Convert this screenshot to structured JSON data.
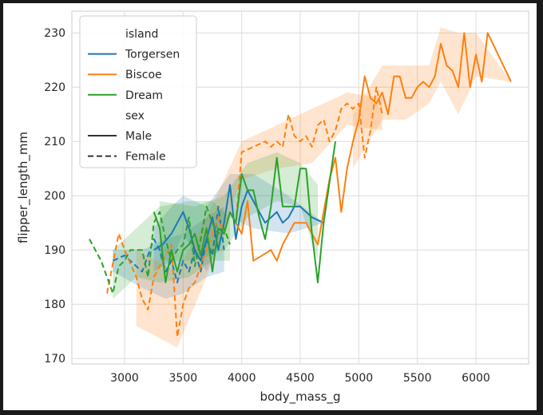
{
  "chart_data": {
    "type": "line",
    "title": "",
    "xlabel": "body_mass_g",
    "ylabel": "flipper_length_mm",
    "xlim": [
      2550,
      6450
    ],
    "ylim": [
      169,
      234
    ],
    "xticks": [
      3000,
      3500,
      4000,
      4500,
      5000,
      5500,
      6000
    ],
    "yticks": [
      170,
      180,
      190,
      200,
      210,
      220,
      230
    ],
    "grid": true,
    "legend_placement": "top-left",
    "legend": {
      "hue_title": "island",
      "style_title": "sex",
      "entries": [
        {
          "label": "Torgersen",
          "kind": "color",
          "color": "#1f77b4"
        },
        {
          "label": "Biscoe",
          "kind": "color",
          "color": "#ff7f0e"
        },
        {
          "label": "Dream",
          "kind": "color",
          "color": "#2ca02c"
        },
        {
          "label": "Male",
          "kind": "style",
          "dash": "solid"
        },
        {
          "label": "Female",
          "kind": "style",
          "dash": "dashed"
        }
      ]
    },
    "series": [
      {
        "island": "Torgersen",
        "sex": "Male",
        "color": "#1f77b4",
        "dash": "solid",
        "points": [
          [
            3250,
            190
          ],
          [
            3325,
            191
          ],
          [
            3400,
            193
          ],
          [
            3450,
            195
          ],
          [
            3500,
            197
          ],
          [
            3550,
            194
          ],
          [
            3600,
            190
          ],
          [
            3650,
            188
          ],
          [
            3700,
            192
          ],
          [
            3750,
            196
          ],
          [
            3800,
            190
          ],
          [
            3850,
            195
          ],
          [
            3900,
            202
          ],
          [
            3950,
            192
          ],
          [
            4000,
            198
          ],
          [
            4050,
            201
          ],
          [
            4100,
            199
          ],
          [
            4200,
            195
          ],
          [
            4300,
            197
          ],
          [
            4350,
            195
          ],
          [
            4400,
            196
          ],
          [
            4450,
            198
          ],
          [
            4500,
            198
          ],
          [
            4600,
            196
          ],
          [
            4700,
            195
          ]
        ],
        "band": [
          [
            3250,
            186,
            194
          ],
          [
            3400,
            188,
            198
          ],
          [
            3500,
            193,
            200
          ],
          [
            3700,
            186,
            198
          ],
          [
            3900,
            196,
            204
          ],
          [
            4100,
            194,
            204
          ],
          [
            4400,
            193,
            200
          ],
          [
            4700,
            195,
            195
          ]
        ]
      },
      {
        "island": "Torgersen",
        "sex": "Female",
        "color": "#1f77b4",
        "dash": "dashed",
        "points": [
          [
            2900,
            188
          ],
          [
            3000,
            189
          ],
          [
            3050,
            188
          ],
          [
            3100,
            187
          ],
          [
            3150,
            186
          ],
          [
            3200,
            189
          ],
          [
            3250,
            192
          ],
          [
            3300,
            190
          ],
          [
            3350,
            186
          ],
          [
            3400,
            188
          ],
          [
            3450,
            184
          ],
          [
            3500,
            188
          ],
          [
            3550,
            186
          ],
          [
            3600,
            190
          ],
          [
            3650,
            186
          ],
          [
            3700,
            192
          ],
          [
            3750,
            189
          ],
          [
            3800,
            198
          ],
          [
            3850,
            190
          ]
        ],
        "band": [
          [
            2900,
            186,
            190
          ],
          [
            3150,
            183,
            190
          ],
          [
            3350,
            181,
            192
          ],
          [
            3500,
            182,
            193
          ],
          [
            3700,
            185,
            196
          ],
          [
            3850,
            186,
            198
          ]
        ]
      },
      {
        "island": "Biscoe",
        "sex": "Male",
        "color": "#ff7f0e",
        "dash": "solid",
        "points": [
          [
            3950,
            195
          ],
          [
            4000,
            193
          ],
          [
            4050,
            199
          ],
          [
            4100,
            188
          ],
          [
            4250,
            190
          ],
          [
            4300,
            188
          ],
          [
            4350,
            191
          ],
          [
            4450,
            195
          ],
          [
            4550,
            195
          ],
          [
            4650,
            191
          ],
          [
            4750,
            203
          ],
          [
            4800,
            207
          ],
          [
            4850,
            197
          ],
          [
            4900,
            205
          ],
          [
            4950,
            210
          ],
          [
            5000,
            214
          ],
          [
            5050,
            222
          ],
          [
            5100,
            218
          ],
          [
            5150,
            217
          ],
          [
            5200,
            219
          ],
          [
            5250,
            215
          ],
          [
            5300,
            222
          ],
          [
            5350,
            222
          ],
          [
            5400,
            218
          ],
          [
            5450,
            218
          ],
          [
            5500,
            220
          ],
          [
            5550,
            221
          ],
          [
            5600,
            220
          ],
          [
            5650,
            222
          ],
          [
            5700,
            228
          ],
          [
            5750,
            224
          ],
          [
            5800,
            223
          ],
          [
            5850,
            220
          ],
          [
            5900,
            230
          ],
          [
            5950,
            220
          ],
          [
            6000,
            226
          ],
          [
            6050,
            221
          ],
          [
            6100,
            230
          ],
          [
            6300,
            221
          ]
        ],
        "band": [
          [
            4950,
            205,
            215
          ],
          [
            5200,
            214,
            224
          ],
          [
            5400,
            214,
            224
          ],
          [
            5600,
            217,
            224
          ],
          [
            5700,
            221,
            231
          ],
          [
            5850,
            215,
            230
          ],
          [
            6000,
            222,
            230
          ],
          [
            6300,
            221,
            221
          ]
        ]
      },
      {
        "island": "Biscoe",
        "sex": "Female",
        "color": "#ff7f0e",
        "dash": "dashed",
        "points": [
          [
            2850,
            182
          ],
          [
            2950,
            193
          ],
          [
            3000,
            190
          ],
          [
            3100,
            185
          ],
          [
            3150,
            181
          ],
          [
            3200,
            179
          ],
          [
            3250,
            185
          ],
          [
            3300,
            187
          ],
          [
            3400,
            191
          ],
          [
            3450,
            174
          ],
          [
            3500,
            180
          ],
          [
            3550,
            183
          ],
          [
            3600,
            184
          ],
          [
            3700,
            190
          ],
          [
            3800,
            196
          ],
          [
            3850,
            193
          ],
          [
            3900,
            197
          ],
          [
            3950,
            195
          ],
          [
            4000,
            208
          ],
          [
            4100,
            209
          ],
          [
            4200,
            210
          ],
          [
            4250,
            209
          ],
          [
            4300,
            210
          ],
          [
            4350,
            209
          ],
          [
            4400,
            215
          ],
          [
            4450,
            211
          ],
          [
            4500,
            210
          ],
          [
            4550,
            211
          ],
          [
            4600,
            209
          ],
          [
            4650,
            213
          ],
          [
            4700,
            214
          ],
          [
            4750,
            210
          ],
          [
            4800,
            212
          ],
          [
            4850,
            216
          ],
          [
            4900,
            217
          ],
          [
            4950,
            216
          ],
          [
            5000,
            217
          ],
          [
            5050,
            207
          ],
          [
            5100,
            212
          ],
          [
            5150,
            220
          ],
          [
            5200,
            215
          ]
        ],
        "band": [
          [
            3100,
            176,
            190
          ],
          [
            3450,
            172,
            186
          ],
          [
            3700,
            185,
            196
          ],
          [
            4000,
            203,
            210
          ],
          [
            4300,
            205,
            213
          ],
          [
            4600,
            206,
            216
          ],
          [
            4900,
            213,
            219
          ],
          [
            5200,
            212,
            218
          ]
        ]
      },
      {
        "island": "Dream",
        "sex": "Male",
        "color": "#2ca02c",
        "dash": "solid",
        "points": [
          [
            3250,
            197
          ],
          [
            3300,
            194
          ],
          [
            3350,
            184
          ],
          [
            3400,
            190
          ],
          [
            3450,
            186
          ],
          [
            3500,
            190
          ],
          [
            3550,
            191
          ],
          [
            3600,
            193
          ],
          [
            3650,
            189
          ],
          [
            3700,
            194
          ],
          [
            3750,
            186
          ],
          [
            3800,
            194
          ],
          [
            3850,
            193
          ],
          [
            3900,
            197
          ],
          [
            3950,
            195
          ],
          [
            4000,
            204
          ],
          [
            4050,
            201
          ],
          [
            4100,
            201
          ],
          [
            4150,
            196
          ],
          [
            4200,
            192
          ],
          [
            4250,
            198
          ],
          [
            4300,
            207
          ],
          [
            4350,
            198
          ],
          [
            4450,
            198
          ],
          [
            4500,
            205
          ],
          [
            4550,
            205
          ],
          [
            4600,
            193
          ],
          [
            4650,
            184
          ],
          [
            4700,
            195
          ],
          [
            4800,
            210
          ]
        ],
        "band": [
          [
            3300,
            188,
            199
          ],
          [
            3600,
            188,
            198
          ],
          [
            3850,
            190,
            200
          ],
          [
            4050,
            196,
            206
          ],
          [
            4300,
            199,
            208
          ],
          [
            4500,
            198,
            206
          ],
          [
            4650,
            188,
            202
          ]
        ]
      },
      {
        "island": "Dream",
        "sex": "Female",
        "color": "#2ca02c",
        "dash": "dashed",
        "points": [
          [
            2700,
            192
          ],
          [
            2800,
            188
          ],
          [
            2850,
            185
          ],
          [
            2900,
            182
          ],
          [
            2950,
            187
          ],
          [
            3000,
            188
          ],
          [
            3050,
            190
          ],
          [
            3150,
            190
          ],
          [
            3200,
            185
          ],
          [
            3250,
            195
          ],
          [
            3300,
            197
          ],
          [
            3350,
            192
          ],
          [
            3400,
            188
          ],
          [
            3450,
            190
          ],
          [
            3500,
            191
          ],
          [
            3550,
            196
          ],
          [
            3600,
            187
          ],
          [
            3650,
            192
          ],
          [
            3700,
            198
          ],
          [
            3750,
            195
          ],
          [
            3800,
            193
          ],
          [
            3850,
            194
          ],
          [
            3900,
            191
          ]
        ],
        "band": [
          [
            2900,
            181,
            190
          ],
          [
            3100,
            185,
            194
          ],
          [
            3300,
            184,
            198
          ],
          [
            3550,
            185,
            199
          ],
          [
            3750,
            188,
            199
          ],
          [
            3900,
            188,
            196
          ]
        ]
      }
    ]
  }
}
